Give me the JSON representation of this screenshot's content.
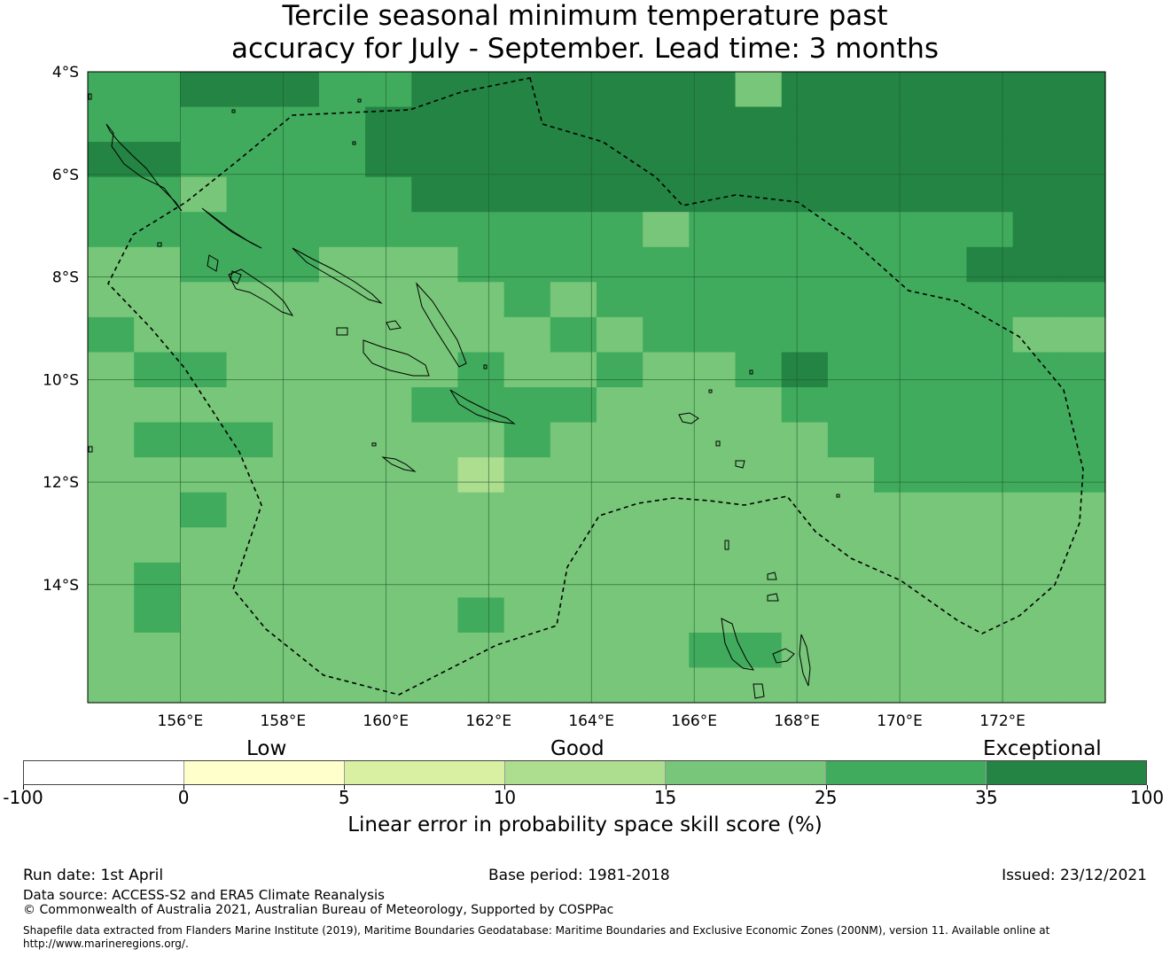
{
  "title": {
    "line1": "Tercile seasonal minimum temperature past",
    "line2": "accuracy for July - September. Lead time: 3 months"
  },
  "map": {
    "lat_labels": [
      "4°S",
      "6°S",
      "8°S",
      "10°S",
      "12°S",
      "14°S"
    ],
    "lon_labels": [
      "156°E",
      "158°E",
      "160°E",
      "162°E",
      "164°E",
      "166°E",
      "168°E",
      "170°E",
      "172°E"
    ],
    "extent": {
      "lon_min": 154.2,
      "lon_max": 174.0,
      "lat_north": -4.0,
      "lat_south": -16.3
    },
    "grid_resolution_deg": 0.833,
    "eez_boundary": "dashed",
    "cell_categories_rows_north_to_south": [
      "3344433444444454444444",
      "3333334444444444444444",
      "4433334444444444444444",
      "3353333444444444444444",
      "3333333333332333333344",
      "2233322233333333333444",
      "2222222223233333333333",
      "3222222222323333333322",
      "2332222232232234333333",
      "2222222333322223333333",
      "2333222223222222333333",
      "2222222212222222233333",
      "2232222222222222222222",
      "2222222222222222222222",
      "2322222222222222222222",
      "2322222232222222222222",
      "2222222222222332222222",
      "2222222222222222222222"
    ]
  },
  "colorbar": {
    "qualitative_labels": [
      "Low",
      "Good",
      "Exceptional"
    ],
    "ticks": [
      "-100",
      "0",
      "5",
      "10",
      "15",
      "25",
      "35",
      "100"
    ],
    "colors": [
      "#ffffff",
      "#ffffcc",
      "#d9f0a3",
      "#addd8e",
      "#78c679",
      "#41ab5d",
      "#238443"
    ],
    "label": "Linear error in probability space skill score (%)"
  },
  "footer": {
    "run_date": "Run date: 1st April",
    "base_period": "Base period: 1981-2018",
    "issued": "Issued: 23/12/2021",
    "data_source": "Data source: ACCESS-S2 and ERA5 Climate Reanalysis",
    "copyright": "© Commonwealth of Australia 2021, Australian Bureau of Meteorology, Supported by COSPPac",
    "shapefile_line1": "Shapefile data extracted from Flanders Marine Institute (2019), Maritime Boundaries Geodatabase: Maritime Boundaries and Exclusive Economic Zones (200NM), version 11. Available online at",
    "shapefile_line2": "http://www.marineregions.org/."
  }
}
